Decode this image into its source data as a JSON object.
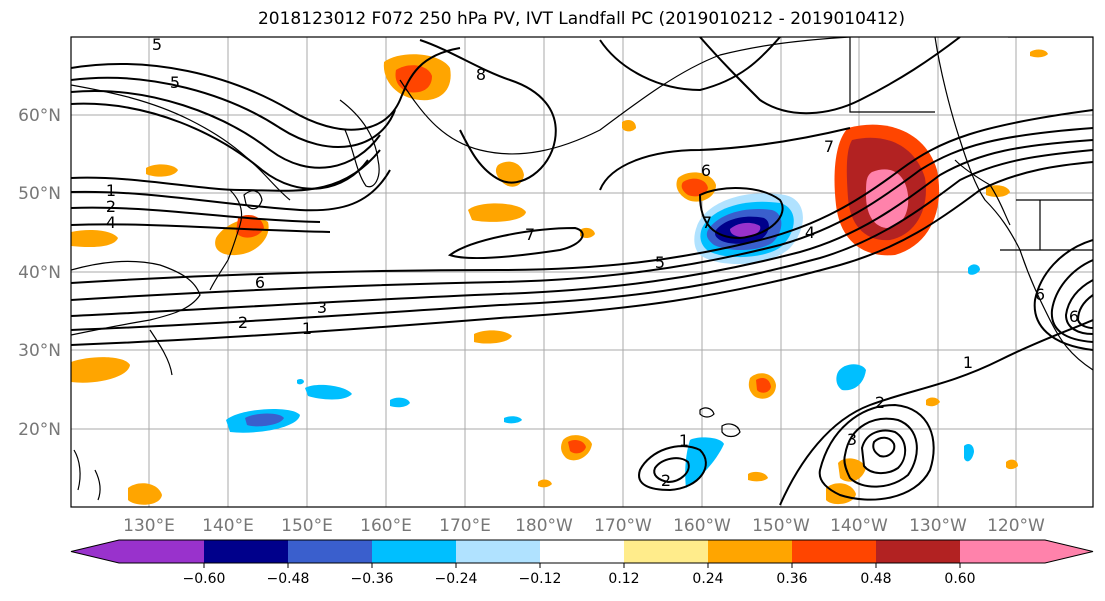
{
  "title": "2018123012 F072 250 hPa PV, IVT Landfall PC (2019010212 - 2019010412)",
  "map": {
    "lon_labels": [
      "130°E",
      "140°E",
      "150°E",
      "160°E",
      "170°E",
      "180°W",
      "170°W",
      "160°W",
      "150°W",
      "140°W",
      "130°W",
      "120°W"
    ],
    "lat_labels": [
      "60°N",
      "50°N",
      "40°N",
      "30°N",
      "20°N"
    ],
    "contour_labels": [
      "5",
      "5",
      "8",
      "7",
      "7",
      "6",
      "6",
      "7",
      "1",
      "2",
      "4",
      "6",
      "3",
      "2",
      "1",
      "5",
      "4",
      "1",
      "2",
      "3",
      "2",
      "1",
      "6"
    ],
    "land_color": "#000000",
    "grid_color": "#aaaaaa"
  },
  "colorbar": {
    "colors": [
      "#9932cc",
      "#00008b",
      "#3a5fcd",
      "#00bfff",
      "#b0e2ff",
      "#ffffff",
      "#ffec8b",
      "#ffa500",
      "#ff4500",
      "#b22222",
      "#ff82ab"
    ],
    "tick_labels": [
      "−0.60",
      "−0.48",
      "−0.36",
      "−0.24",
      "−0.12",
      "0.12",
      "0.24",
      "0.36",
      "0.48",
      "0.60"
    ]
  }
}
